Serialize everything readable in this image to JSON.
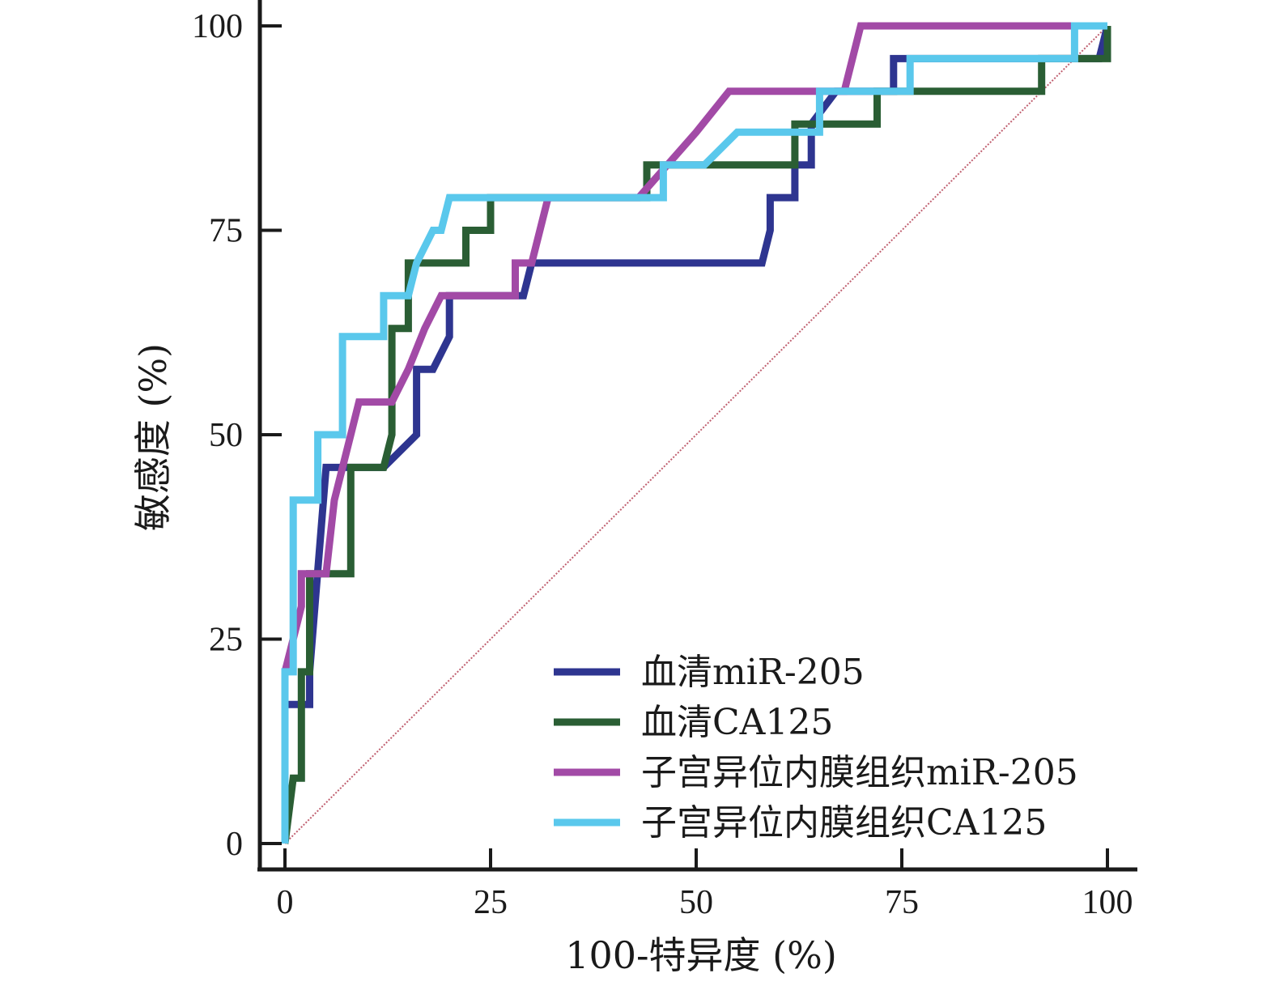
{
  "chart_data": {
    "type": "line",
    "title": "",
    "xlabel": "100-特异度 (%)",
    "ylabel": "敏感度 (%)",
    "xlim": [
      0,
      100
    ],
    "ylim": [
      0,
      100
    ],
    "xticks": [
      "0",
      "25",
      "50",
      "75",
      "100"
    ],
    "yticks": [
      "0",
      "25",
      "50",
      "75",
      "100"
    ],
    "legend_position": "bottom-right",
    "reference_line": {
      "name": "diagonal",
      "color": "#c06070",
      "points": [
        [
          0,
          0
        ],
        [
          100,
          100
        ]
      ]
    },
    "series": [
      {
        "name": "血清miR-205",
        "color": "#2e3590",
        "points": [
          [
            0,
            0
          ],
          [
            0,
            17
          ],
          [
            3,
            17
          ],
          [
            3,
            21
          ],
          [
            5,
            46
          ],
          [
            12,
            46
          ],
          [
            16,
            50
          ],
          [
            16,
            58
          ],
          [
            18,
            58
          ],
          [
            20,
            62
          ],
          [
            20,
            67
          ],
          [
            29,
            67
          ],
          [
            30,
            71
          ],
          [
            58,
            71
          ],
          [
            59,
            75
          ],
          [
            59,
            79
          ],
          [
            62,
            79
          ],
          [
            62,
            83
          ],
          [
            64,
            83
          ],
          [
            64,
            88
          ],
          [
            67,
            92
          ],
          [
            74,
            92
          ],
          [
            74,
            96
          ],
          [
            99,
            96
          ],
          [
            100,
            100
          ]
        ]
      },
      {
        "name": "血清CA125",
        "color": "#2a5e34",
        "points": [
          [
            0,
            0
          ],
          [
            1,
            8
          ],
          [
            2,
            8
          ],
          [
            2,
            21
          ],
          [
            3,
            21
          ],
          [
            3,
            33
          ],
          [
            8,
            33
          ],
          [
            8,
            46
          ],
          [
            12,
            46
          ],
          [
            13,
            50
          ],
          [
            13,
            63
          ],
          [
            15,
            63
          ],
          [
            15,
            71
          ],
          [
            22,
            71
          ],
          [
            22,
            75
          ],
          [
            25,
            75
          ],
          [
            25,
            79
          ],
          [
            44,
            79
          ],
          [
            44,
            83
          ],
          [
            62,
            83
          ],
          [
            62,
            88
          ],
          [
            72,
            88
          ],
          [
            72,
            92
          ],
          [
            92,
            92
          ],
          [
            92,
            96
          ],
          [
            100,
            96
          ],
          [
            100,
            100
          ]
        ]
      },
      {
        "name": "子宫异位内膜组织miR-205",
        "color": "#a24aa6",
        "points": [
          [
            0,
            21
          ],
          [
            1,
            25
          ],
          [
            2,
            29
          ],
          [
            2,
            33
          ],
          [
            5,
            33
          ],
          [
            6,
            42
          ],
          [
            8,
            50
          ],
          [
            9,
            54
          ],
          [
            13,
            54
          ],
          [
            15,
            58
          ],
          [
            17,
            63
          ],
          [
            19,
            67
          ],
          [
            28,
            67
          ],
          [
            28,
            71
          ],
          [
            30,
            71
          ],
          [
            32,
            79
          ],
          [
            43,
            79
          ],
          [
            50,
            87
          ],
          [
            54,
            92
          ],
          [
            68,
            92
          ],
          [
            70,
            100
          ],
          [
            100,
            100
          ]
        ]
      },
      {
        "name": "子宫异位内膜组织CA125",
        "color": "#5ac8ec",
        "points": [
          [
            0,
            0
          ],
          [
            0,
            21
          ],
          [
            1,
            21
          ],
          [
            1,
            42
          ],
          [
            4,
            42
          ],
          [
            4,
            50
          ],
          [
            7,
            50
          ],
          [
            7,
            62
          ],
          [
            12,
            62
          ],
          [
            12,
            67
          ],
          [
            15,
            67
          ],
          [
            16,
            71
          ],
          [
            18,
            75
          ],
          [
            19,
            75
          ],
          [
            20,
            79
          ],
          [
            46,
            79
          ],
          [
            46,
            83
          ],
          [
            51,
            83
          ],
          [
            55,
            87
          ],
          [
            65,
            87
          ],
          [
            65,
            92
          ],
          [
            76,
            92
          ],
          [
            76,
            96
          ],
          [
            96,
            96
          ],
          [
            96,
            100
          ],
          [
            100,
            100
          ]
        ]
      }
    ]
  }
}
